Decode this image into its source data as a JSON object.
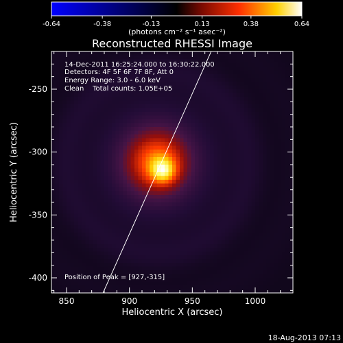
{
  "chart_data": {
    "type": "heatmap",
    "title": "Reconstructed RHESSI Image",
    "xlabel": "Heliocentric X (arcsec)",
    "ylabel": "Heliocentric Y (arcsec)",
    "xlim": [
      838,
      1030
    ],
    "ylim": [
      -412,
      -220
    ],
    "x_ticks": [
      "850",
      "900",
      "950",
      "1000"
    ],
    "x_tick_values": [
      850,
      900,
      950,
      1000
    ],
    "y_ticks": [
      "-250",
      "-300",
      "-350",
      "-400"
    ],
    "y_tick_values": [
      -250,
      -300,
      -350,
      -400
    ],
    "colorbar": {
      "ticks": [
        "-0.64",
        "-0.38",
        "-0.13",
        "0.13",
        "0.38",
        "0.64"
      ],
      "tick_values": [
        -0.64,
        -0.38,
        -0.13,
        0.13,
        0.38,
        0.64
      ],
      "range": [
        -0.64,
        0.64
      ],
      "unit_label": "(photons cm⁻² s⁻¹ asec⁻²)",
      "colors": [
        "#0000ff",
        "#000000",
        "#ff0000",
        "#ffff00",
        "#ffffff"
      ]
    },
    "annotations": [
      "14-Dec-2011 16:25:24.000 to 16:30:22.000",
      "Detectors: 4F 5F 6F 7F 8F, Att 0",
      "Energy Range: 3.0 - 6.0 keV",
      "Clean    Total counts: 1.05E+05"
    ],
    "peak": {
      "x": 927,
      "y": -315,
      "label": "Position of Peak = [927,-315]"
    },
    "source": {
      "x": 922,
      "y": -308,
      "peak_value": 0.64
    },
    "limb_line": [
      [
        879,
        -412
      ],
      [
        965,
        -220
      ]
    ]
  },
  "footer": {
    "date": "18-Aug-2013 07:13"
  }
}
